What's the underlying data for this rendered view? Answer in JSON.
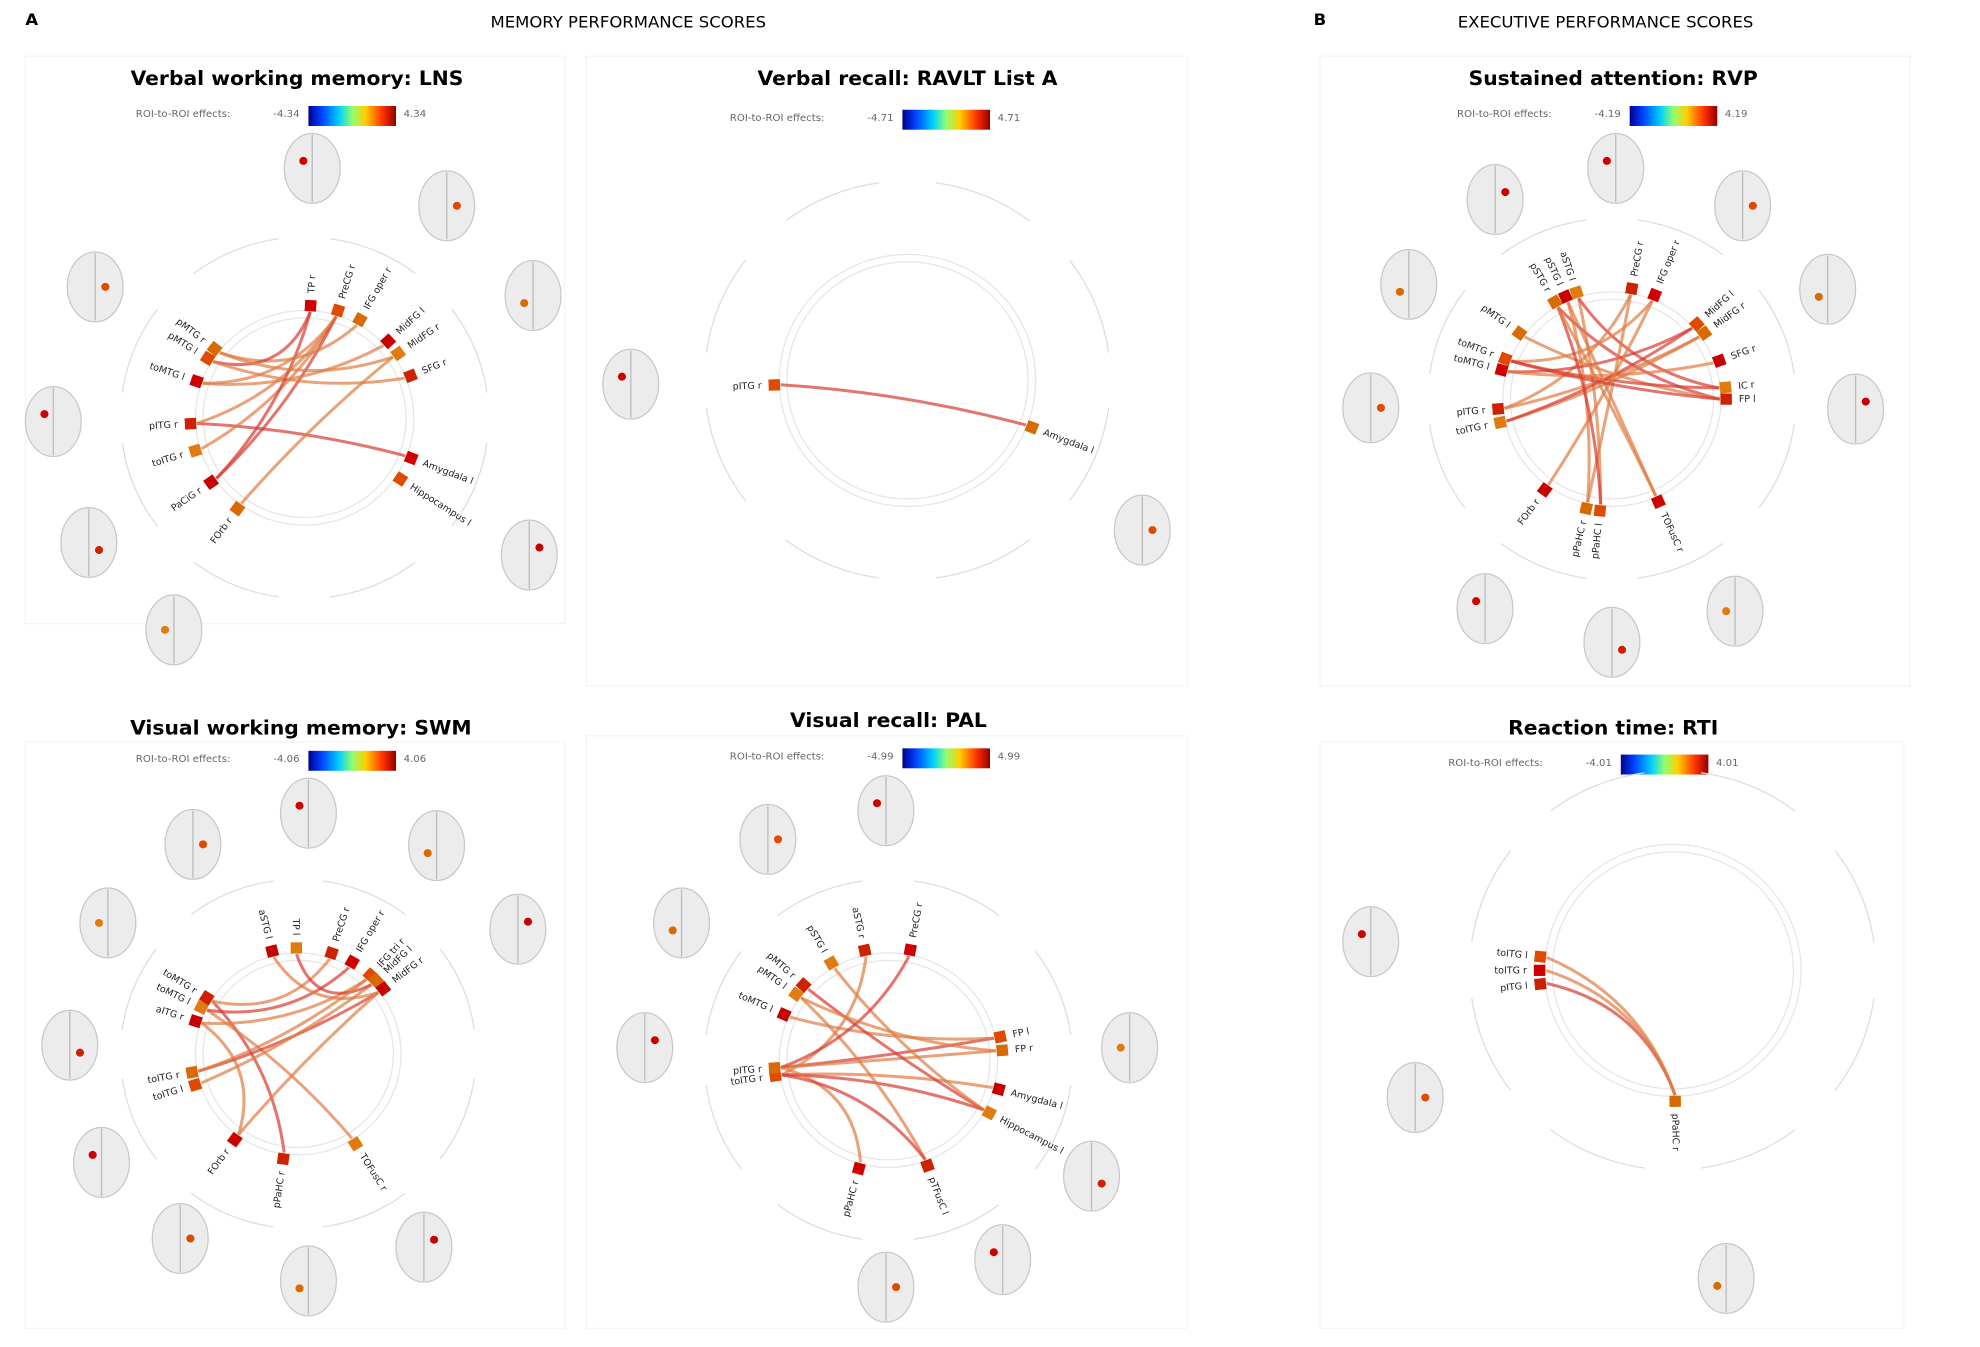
{
  "panels": [
    {
      "label": "A",
      "title": "MEMORY PERFORMANCE SCORES"
    },
    {
      "label": "B",
      "title": "EXECUTIVE PERFORMANCE SCORES"
    }
  ],
  "plots": [
    {
      "title": "Verbal working memory: LNS",
      "colorbar": {
        "label": "ROI-to-ROI effects:",
        "min": -4.34,
        "max": 4.34
      },
      "nodes": [
        "TP r",
        "PreCG r",
        "IFG oper r",
        "MidFG l",
        "MidFG r",
        "SFG r",
        "Amygdala l",
        "Hippocampus l",
        "FOrb r",
        "PaCiG r",
        "toITG r",
        "pITG r",
        "toMTG l",
        "pMTG l",
        "pMTG r"
      ]
    },
    {
      "title": "Verbal recall: RAVLT List A",
      "colorbar": {
        "label": "ROI-to-ROI effects:",
        "min": -4.71,
        "max": 4.71
      },
      "nodes": [
        "pITG r",
        "Amygdala l"
      ]
    },
    {
      "title": "Sustained attention: RVP",
      "colorbar": {
        "label": "ROI-to-ROI effects:",
        "min": -4.19,
        "max": 4.19
      },
      "nodes": [
        "pSTG r",
        "pSTG l",
        "aSTG l",
        "PreCG r",
        "IFG oper r",
        "MidFG l",
        "MidFG r",
        "SFG r",
        "IC r",
        "FP l",
        "TOFusC r",
        "pPaHC l",
        "pPaHC r",
        "FOrb r",
        "toITG r",
        "pITG r",
        "toMTG l",
        "toMTG r",
        "pMTG l"
      ]
    },
    {
      "title": "Visual working memory: SWM",
      "colorbar": {
        "label": "ROI-to-ROI effects:",
        "min": -4.06,
        "max": 4.06
      },
      "nodes": [
        "aSTG l",
        "TP l",
        "PreCG r",
        "IFG oper r",
        "IFG tri r",
        "MidFG l",
        "MidFG r",
        "TOFusC r",
        "pPaHC r",
        "FOrb r",
        "toITG l",
        "toITG r",
        "aITG r",
        "toMTG l",
        "toMTG r"
      ]
    },
    {
      "title": "Visual recall: PAL",
      "colorbar": {
        "label": "ROI-to-ROI effects:",
        "min": -4.99,
        "max": 4.99
      },
      "nodes": [
        "pSTG l",
        "aSTG r",
        "PreCG r",
        "FP l",
        "FP r",
        "Amygdala l",
        "Hippocampus l",
        "pTFusC l",
        "pPaHC r",
        "toITG r",
        "pITG r",
        "toMTG l",
        "pMTG l",
        "pMTG r"
      ]
    },
    {
      "title": "Reaction time: RTI",
      "colorbar": {
        "label": "ROI-to-ROI effects:",
        "min": -4.01,
        "max": 4.01
      },
      "nodes": [
        "pITG l",
        "toITG r",
        "toITG l",
        "pPaHC r"
      ]
    }
  ]
}
